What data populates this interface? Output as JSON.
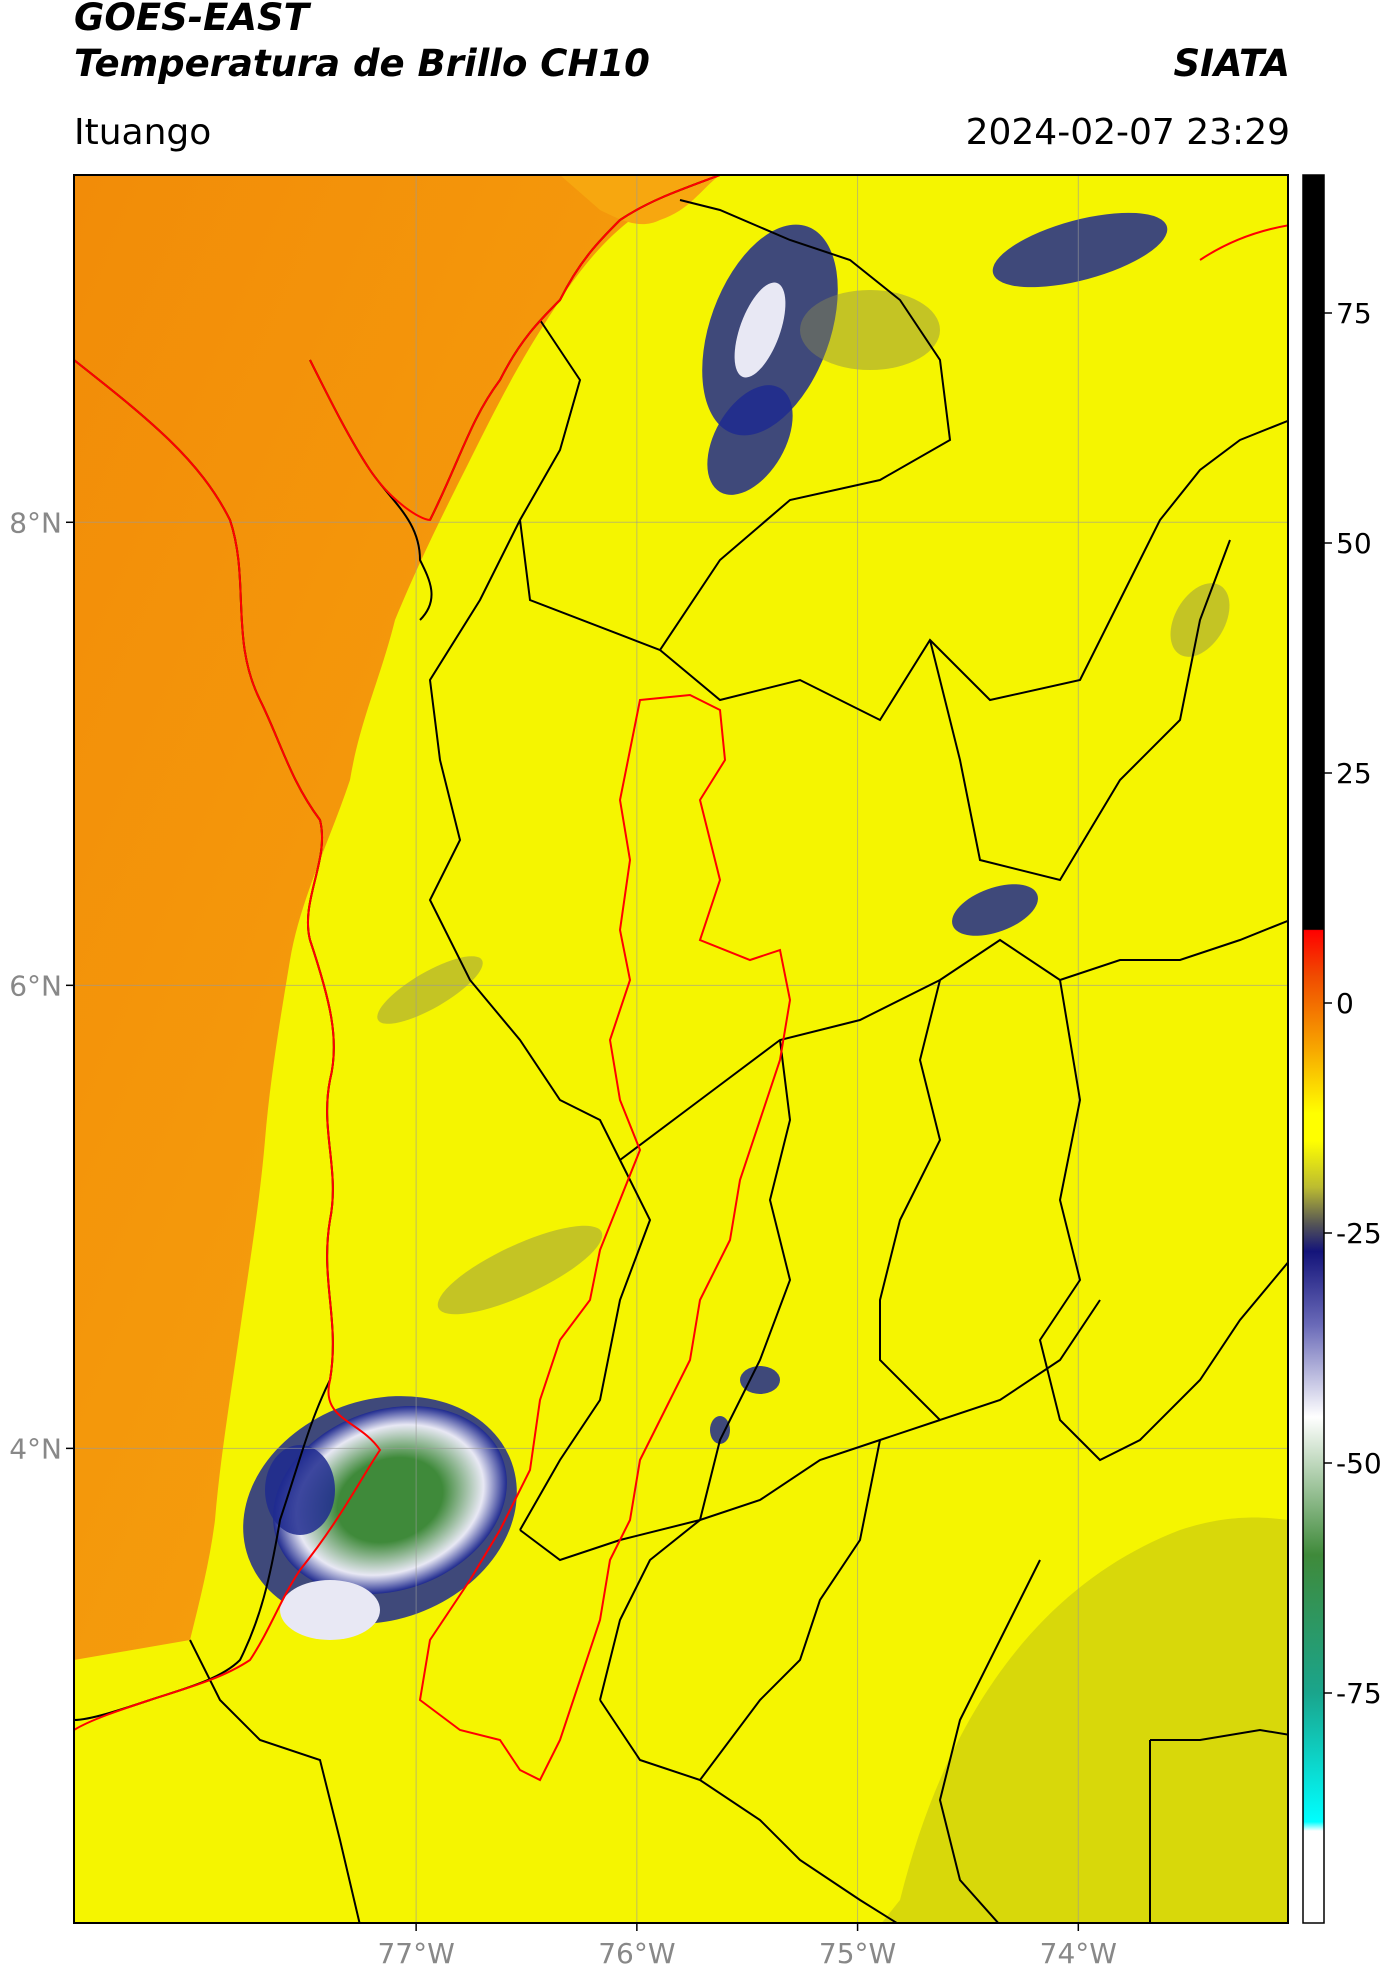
{
  "header": {
    "title_line1": "GOES-EAST",
    "title_line2": "Temperatura de Brillo CH10",
    "credit": "SIATA",
    "location": "Ituango",
    "timestamp": "2024-02-07 23:29"
  },
  "map": {
    "lon_range": [
      -78.55,
      -73.05
    ],
    "lat_range": [
      1.95,
      9.5
    ],
    "lat_ticks": [
      {
        "value": 8,
        "label": "8°N"
      },
      {
        "value": 6,
        "label": "6°N"
      },
      {
        "value": 4,
        "label": "4°N"
      }
    ],
    "lon_ticks": [
      {
        "value": -77,
        "label": "77°W"
      },
      {
        "value": -76,
        "label": "76°W"
      },
      {
        "value": -75,
        "label": "75°W"
      },
      {
        "value": -74,
        "label": "74°W"
      }
    ],
    "colors": {
      "ocean": "#f7a70f",
      "warm_ocean": "#f28c08",
      "land": "#f5f500",
      "land_cool": "#d8d80a",
      "cloud_dark": "#1f2a8f",
      "cloud_light": "#e8e8f4",
      "cloud_green": "#3f8a3a",
      "boundary": "#000000",
      "coast_red": "#ff0000"
    }
  },
  "colorbar": {
    "range": [
      -100,
      90
    ],
    "ticks": [
      {
        "value": 75,
        "label": "75"
      },
      {
        "value": 50,
        "label": "50"
      },
      {
        "value": 25,
        "label": "25"
      },
      {
        "value": 0,
        "label": "0"
      },
      {
        "value": -25,
        "label": "-25"
      },
      {
        "value": -50,
        "label": "-50"
      },
      {
        "value": -75,
        "label": "-75"
      }
    ],
    "stops": [
      {
        "value": 90,
        "color": "#000000"
      },
      {
        "value": 8,
        "color": "#000000"
      },
      {
        "value": 7.9,
        "color": "#ff0000"
      },
      {
        "value": 3,
        "color": "#f04a00"
      },
      {
        "value": -5,
        "color": "#f7a700"
      },
      {
        "value": -12,
        "color": "#ffff00"
      },
      {
        "value": -15,
        "color": "#ffff00"
      },
      {
        "value": -20,
        "color": "#bcbc30"
      },
      {
        "value": -24,
        "color": "#555555"
      },
      {
        "value": -27,
        "color": "#14147a"
      },
      {
        "value": -35,
        "color": "#6a6ab8"
      },
      {
        "value": -45,
        "color": "#ffffff"
      },
      {
        "value": -60,
        "color": "#3f8a3a"
      },
      {
        "value": -75,
        "color": "#1aa58c"
      },
      {
        "value": -89,
        "color": "#00ffff"
      },
      {
        "value": -90,
        "color": "#ffffff"
      },
      {
        "value": -100,
        "color": "#ffffff"
      }
    ]
  }
}
